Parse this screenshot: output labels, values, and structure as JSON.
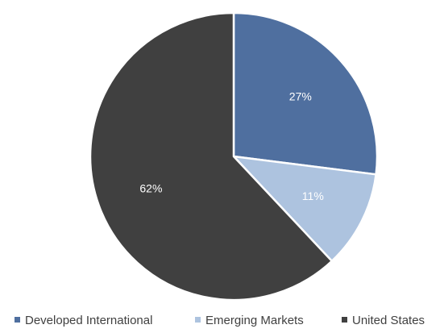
{
  "chart_data": {
    "type": "pie",
    "slices": [
      {
        "name": "Developed International",
        "value": 27,
        "label": "27%",
        "color": "#4f6f9f"
      },
      {
        "name": "Emerging Markets",
        "value": 11,
        "label": "11%",
        "color": "#adc3df"
      },
      {
        "name": "United States",
        "value": 62,
        "label": "62%",
        "color": "#404040"
      }
    ],
    "legend_position": "bottom"
  }
}
